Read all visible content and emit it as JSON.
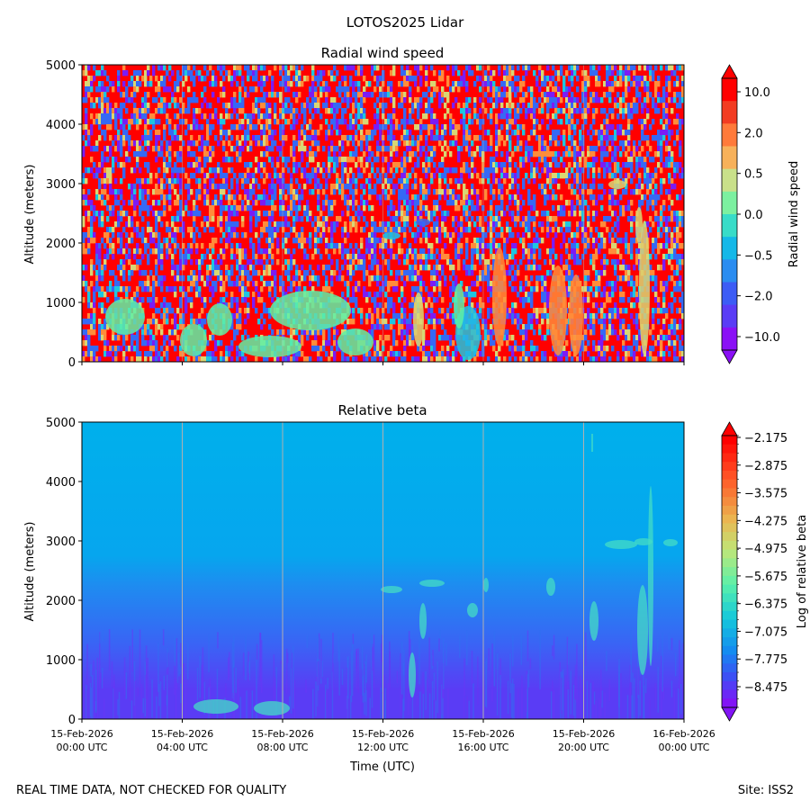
{
  "figure": {
    "suptitle": "LOTOS2025 Lidar",
    "footer_left": "REAL TIME DATA, NOT CHECKED FOR QUALITY",
    "footer_right": "Site: ISS2"
  },
  "chart_data": [
    {
      "type": "heatmap",
      "title": "Radial wind speed",
      "ylabel": "Altitude (meters)",
      "ylim": [
        0,
        5000
      ],
      "yticks": [
        "0",
        "1000",
        "2000",
        "3000",
        "4000",
        "5000"
      ],
      "xlim_hours": [
        0,
        24
      ],
      "colorbar_label": "Radial wind speed",
      "colorbar_ticks": [
        "10.0",
        "2.0",
        "0.5",
        "0.0",
        "−0.5",
        "−2.0",
        "−10.0"
      ],
      "colors": {
        "red": "#ff0000",
        "orange": "#ff8c3a",
        "yellow": "#d8d774",
        "green": "#5ef0a6",
        "cyan": "#1ec6e0",
        "blue": "#3569f5",
        "purple": "#7b1cf5"
      }
    },
    {
      "type": "heatmap",
      "title": "Relative beta",
      "ylabel": "Altitude (meters)",
      "xlabel": "Time (UTC)",
      "ylim": [
        0,
        5000
      ],
      "yticks": [
        "0",
        "1000",
        "2000",
        "3000",
        "4000",
        "5000"
      ],
      "xlim_hours": [
        0,
        24
      ],
      "xticks": [
        {
          "date": "15-Feb-2026",
          "time": "00:00 UTC"
        },
        {
          "date": "15-Feb-2026",
          "time": "04:00 UTC"
        },
        {
          "date": "15-Feb-2026",
          "time": "08:00 UTC"
        },
        {
          "date": "15-Feb-2026",
          "time": "12:00 UTC"
        },
        {
          "date": "15-Feb-2026",
          "time": "16:00 UTC"
        },
        {
          "date": "15-Feb-2026",
          "time": "20:00 UTC"
        },
        {
          "date": "16-Feb-2026",
          "time": "00:00 UTC"
        }
      ],
      "colorbar_label": "Log of relative beta",
      "colorbar_ticks": [
        "−2.175",
        "−2.875",
        "−3.575",
        "−4.275",
        "−4.975",
        "−5.675",
        "−6.375",
        "−7.075",
        "−7.775",
        "−8.475"
      ],
      "colors": {
        "background_cyan": "#00b0ec",
        "mid_blue": "#1e8cf0",
        "low_blue": "#3a63f5",
        "surface_purple": "#5a3cf5",
        "plume_green": "#44dcc6",
        "grid": "#b0b0b0"
      }
    }
  ]
}
